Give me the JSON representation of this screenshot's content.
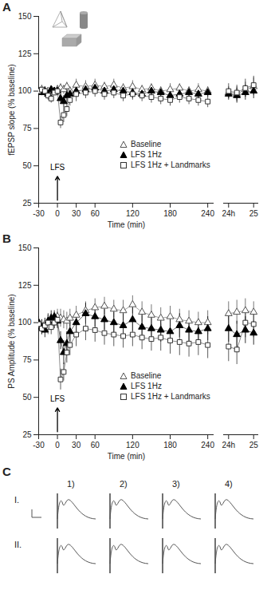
{
  "chart_data": [
    {
      "type": "line",
      "panel": "A",
      "x_label": "Time (min)",
      "y_label": "fEPSP slope (% baseline)",
      "x": [
        -30,
        -25,
        -20,
        -15,
        -10,
        -5,
        0,
        5,
        10,
        15,
        20,
        30,
        45,
        60,
        75,
        90,
        105,
        120,
        135,
        150,
        165,
        180,
        195,
        210,
        225,
        240
      ],
      "xlim": [
        -30,
        250
      ],
      "xticks": [
        -30,
        0,
        30,
        60,
        120,
        180,
        240
      ],
      "ylim": [
        25,
        150
      ],
      "yticks": [
        25,
        50,
        75,
        100,
        125,
        150
      ],
      "legend": "bottom-right",
      "annotations": [
        {
          "text": "LFS",
          "x": 0,
          "y": 49,
          "arrow_from": 27,
          "arrow_to": 43
        }
      ],
      "series": [
        {
          "name": "Baseline",
          "color": "#555555",
          "marker": "triangle-open",
          "line_style": "solid",
          "values": [
            100,
            101,
            99,
            100,
            101,
            100,
            101,
            102,
            101,
            103,
            100,
            104,
            103,
            104,
            103,
            104,
            102,
            103,
            101,
            102,
            100,
            101,
            102,
            100,
            101,
            100
          ],
          "errors": [
            2,
            2,
            3,
            2,
            2,
            2,
            3,
            3,
            3,
            3,
            3,
            4,
            4,
            4,
            3,
            4,
            3,
            4,
            3,
            3,
            3,
            4,
            3,
            3,
            4,
            3
          ]
        },
        {
          "name": "LFS 1Hz",
          "color": "#000000",
          "marker": "triangle-filled",
          "line_style": "solid",
          "values": [
            100,
            99,
            100,
            98,
            101,
            100,
            100,
            95,
            93,
            97,
            98,
            100,
            101,
            102,
            100,
            101,
            100,
            99,
            98,
            100,
            99,
            97,
            98,
            99,
            98,
            99
          ],
          "errors": [
            2,
            2,
            3,
            2,
            2,
            2,
            3,
            3,
            4,
            4,
            3,
            4,
            4,
            4,
            3,
            4,
            3,
            4,
            3,
            3,
            3,
            4,
            3,
            3,
            4,
            3
          ]
        },
        {
          "name": "LFS 1Hz + Landmarks",
          "color": "#333333",
          "marker": "square-open",
          "line_style": "solid",
          "values": [
            100,
            101,
            100,
            97,
            95,
            99,
            100,
            79,
            84,
            88,
            94,
            98,
            99,
            100,
            98,
            99,
            97,
            98,
            97,
            96,
            95,
            94,
            96,
            95,
            94,
            93
          ],
          "errors": [
            2,
            3,
            3,
            3,
            3,
            2,
            3,
            4,
            5,
            5,
            4,
            5,
            4,
            4,
            4,
            4,
            4,
            4,
            4,
            4,
            4,
            4,
            4,
            4,
            4,
            4
          ]
        }
      ]
    },
    {
      "type": "line",
      "x": [
        24,
        24.33,
        24.67,
        25
      ],
      "xlim": [
        23.8,
        25.2
      ],
      "xticks": [
        {
          "value": 24,
          "label": "24h"
        },
        25
      ],
      "ylim": [
        25,
        150
      ],
      "tick_labels": "x",
      "series": [
        {
          "name": "Baseline",
          "color": "#555555",
          "marker": "triangle-open",
          "line_style": "solid",
          "values": [
            99,
            98,
            101,
            103
          ],
          "errors": [
            4,
            5,
            5,
            6
          ]
        },
        {
          "name": "LFS 1Hz",
          "color": "#000000",
          "marker": "triangle-filled",
          "line_style": "solid",
          "values": [
            98,
            97,
            99,
            100
          ],
          "errors": [
            4,
            5,
            5,
            5
          ]
        },
        {
          "name": "LFS 1Hz + Landmarks",
          "color": "#333333",
          "marker": "square-open",
          "line_style": "solid",
          "values": [
            100,
            99,
            102,
            104
          ],
          "errors": [
            5,
            5,
            6,
            6
          ]
        }
      ]
    },
    {
      "type": "line",
      "panel": "B",
      "x_label": "Time (min)",
      "y_label": "PS Amplitude (% baseline)",
      "x": [
        -30,
        -25,
        -20,
        -15,
        -10,
        -5,
        0,
        5,
        10,
        15,
        20,
        30,
        45,
        60,
        75,
        90,
        105,
        120,
        135,
        150,
        165,
        180,
        195,
        210,
        225,
        240
      ],
      "xlim": [
        -30,
        250
      ],
      "xticks": [
        -30,
        0,
        30,
        60,
        120,
        180,
        240
      ],
      "ylim": [
        25,
        150
      ],
      "yticks": [
        25,
        50,
        75,
        100,
        125,
        150
      ],
      "legend": "bottom-right",
      "annotations": [
        {
          "text": "LFS",
          "x": 0,
          "y": 49,
          "arrow_from": 27,
          "arrow_to": 43
        }
      ],
      "series": [
        {
          "name": "Baseline",
          "color": "#555555",
          "marker": "triangle-open",
          "line_style": "solid",
          "values": [
            100,
            98,
            99,
            97,
            102,
            100,
            104,
            103,
            102,
            101,
            103,
            105,
            108,
            110,
            111,
            109,
            108,
            112,
            107,
            105,
            103,
            104,
            102,
            101,
            100,
            100
          ],
          "errors": [
            4,
            4,
            4,
            5,
            4,
            4,
            5,
            6,
            6,
            6,
            6,
            6,
            6,
            6,
            6,
            6,
            7,
            6,
            7,
            7,
            7,
            7,
            7,
            7,
            7,
            8
          ]
        },
        {
          "name": "LFS 1Hz",
          "color": "#000000",
          "marker": "triangle-filled",
          "line_style": "solid",
          "values": [
            100,
            97,
            95,
            101,
            103,
            104,
            101,
            88,
            80,
            86,
            94,
            100,
            106,
            104,
            102,
            100,
            98,
            102,
            97,
            96,
            95,
            94,
            98,
            95,
            94,
            96
          ],
          "errors": [
            4,
            5,
            5,
            5,
            5,
            4,
            5,
            6,
            8,
            8,
            7,
            7,
            7,
            7,
            7,
            7,
            8,
            8,
            8,
            8,
            8,
            8,
            8,
            8,
            8,
            8
          ]
        },
        {
          "name": "LFS 1Hz + Landmarks",
          "color": "#333333",
          "marker": "square-open",
          "line_style": "solid",
          "values": [
            99,
            96,
            98,
            100,
            97,
            100,
            102,
            62,
            67,
            80,
            85,
            92,
            96,
            95,
            93,
            92,
            91,
            92,
            90,
            89,
            90,
            88,
            87,
            86,
            87,
            85
          ],
          "errors": [
            4,
            4,
            5,
            5,
            5,
            4,
            5,
            7,
            6,
            7,
            7,
            8,
            8,
            8,
            8,
            8,
            8,
            8,
            8,
            8,
            9,
            9,
            9,
            9,
            9,
            9
          ]
        }
      ]
    },
    {
      "type": "line",
      "x": [
        24,
        24.33,
        24.67,
        25
      ],
      "xlim": [
        23.8,
        25.2
      ],
      "xticks": [
        {
          "value": 24,
          "label": "24h"
        },
        25
      ],
      "ylim": [
        25,
        150
      ],
      "tick_labels": "x",
      "series": [
        {
          "name": "Baseline",
          "color": "#555555",
          "marker": "triangle-open",
          "line_style": "solid",
          "values": [
            106,
            107,
            108,
            107
          ],
          "errors": [
            8,
            8,
            8,
            7
          ]
        },
        {
          "name": "LFS 1Hz",
          "color": "#000000",
          "marker": "triangle-filled",
          "line_style": "solid",
          "values": [
            96,
            92,
            95,
            93
          ],
          "errors": [
            9,
            9,
            9,
            8
          ]
        },
        {
          "name": "LFS 1Hz + Landmarks",
          "color": "#333333",
          "marker": "square-open",
          "line_style": "solid",
          "values": [
            84,
            82,
            100,
            99
          ],
          "errors": [
            10,
            10,
            10,
            9
          ]
        }
      ]
    }
  ],
  "traces": {
    "panel": "C",
    "rows": [
      "I.",
      "II."
    ],
    "columns": [
      "1)",
      "2)",
      "3)",
      "4)"
    ]
  }
}
